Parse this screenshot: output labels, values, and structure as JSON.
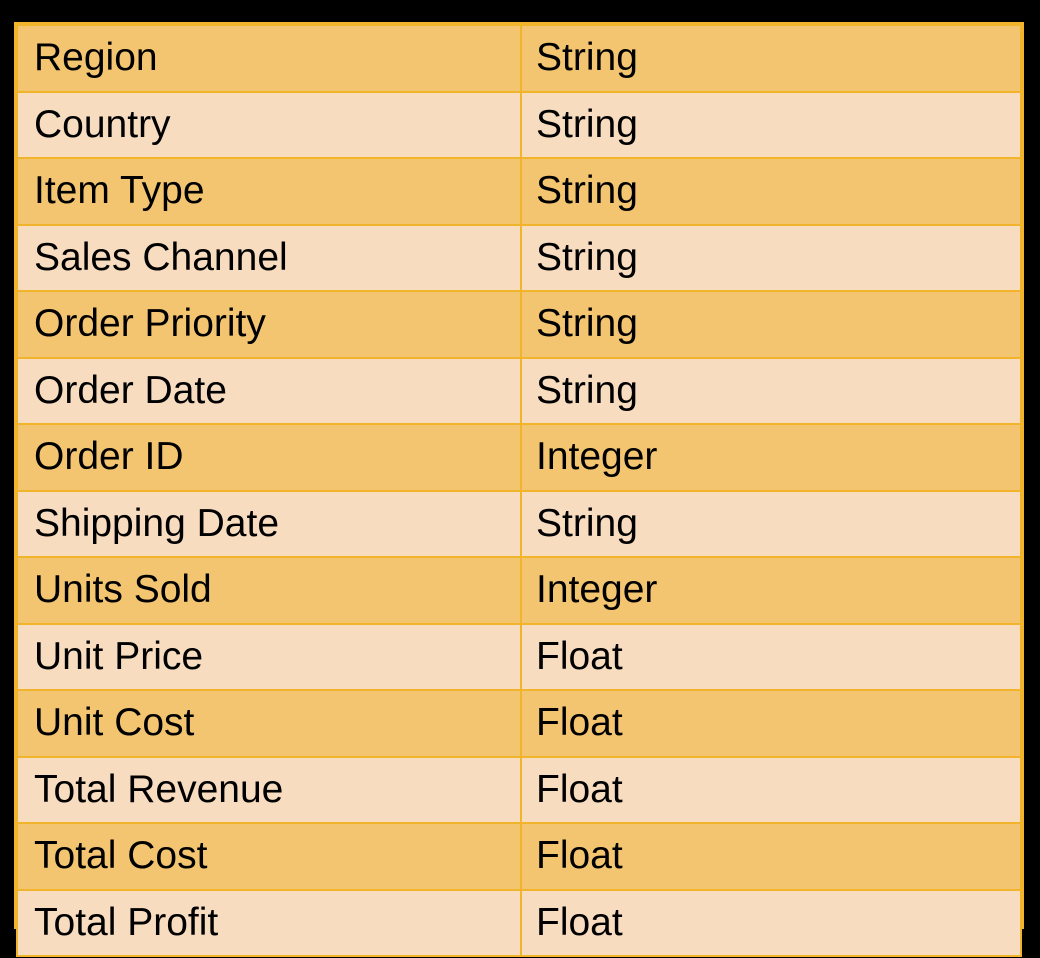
{
  "table": {
    "rows": [
      {
        "field": "Region",
        "type": "String"
      },
      {
        "field": "Country",
        "type": "String"
      },
      {
        "field": "Item Type",
        "type": "String"
      },
      {
        "field": "Sales Channel",
        "type": "String"
      },
      {
        "field": "Order Priority",
        "type": "String"
      },
      {
        "field": "Order Date",
        "type": "String"
      },
      {
        "field": "Order ID",
        "type": "Integer"
      },
      {
        "field": "Shipping Date",
        "type": "String"
      },
      {
        "field": "Units Sold",
        "type": "Integer"
      },
      {
        "field": "Unit Price",
        "type": "Float"
      },
      {
        "field": "Unit Cost",
        "type": "Float"
      },
      {
        "field": "Total Revenue",
        "type": "Float"
      },
      {
        "field": "Total Cost",
        "type": "Float"
      },
      {
        "field": "Total Profit",
        "type": "Float"
      }
    ]
  },
  "colors": {
    "background": "#000000",
    "border": "#f1b42a",
    "row_dark": "#f4c571",
    "row_light": "#f8dcc0"
  }
}
